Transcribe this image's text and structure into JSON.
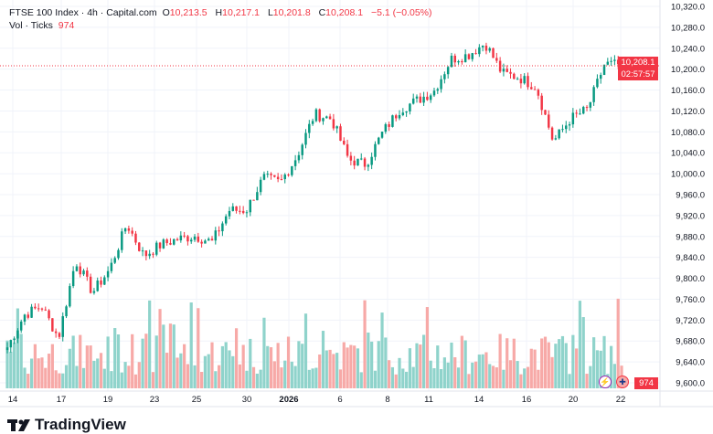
{
  "legend": {
    "symbol": "FTSE 100 Index · 4h · Capital.com",
    "open_label": "O",
    "open": "10,213.5",
    "high_label": "H",
    "high": "10,217.1",
    "low_label": "L",
    "low": "10,201.8",
    "close_label": "C",
    "close": "10,208.1",
    "change": "−5.1 (−0.05%)",
    "vol_label": "Vol · Ticks",
    "vol": "974"
  },
  "price_box": {
    "price": "10,208.1",
    "countdown": "02:57:57"
  },
  "volume_box": "974",
  "brand": "TradingView",
  "colors": {
    "up": "#089981",
    "down": "#f23645",
    "vol_up": "#8fd3cb",
    "vol_down": "#f7a9a7"
  },
  "icons": [
    "lightning-icon",
    "uk-flag-icon"
  ],
  "chart_data": {
    "type": "candlestick",
    "interval": "4h",
    "y_ticks": [
      "10,320.0",
      "10,280.0",
      "10,240.0",
      "10,200.0",
      "10,160.0",
      "10,120.0",
      "10,080.0",
      "10,040.0",
      "10,000.0",
      "9,960.0",
      "9,920.0",
      "9,880.0",
      "9,840.0",
      "9,800.0",
      "9,760.0",
      "9,720.0",
      "9,680.0",
      "9,640.0",
      "9,600.0"
    ],
    "ylim": [
      9600,
      10320
    ],
    "x_ticks": [
      "14",
      "17",
      "19",
      "23",
      "25",
      "30",
      "2026",
      "6",
      "8",
      "11",
      "14",
      "16",
      "20",
      "22"
    ],
    "last_price": 10208.1,
    "close_path_anchors": [
      9668,
      9730,
      9747,
      9686,
      9834,
      9773,
      9817,
      9904,
      9843,
      9864,
      9875,
      9881,
      9869,
      9930,
      9930,
      9992,
      9983,
      10035,
      10114,
      10105,
      10027,
      10018,
      10079,
      10123,
      10140,
      10158,
      10219,
      10227,
      10250,
      10192,
      10184,
      10166,
      10061,
      10105,
      10123,
      10210,
      10208
    ],
    "candle_count": 178
  }
}
